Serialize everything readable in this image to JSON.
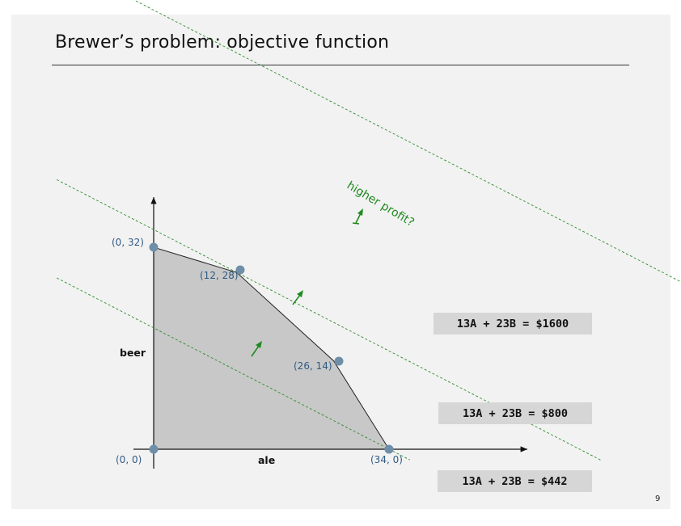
{
  "slide": {
    "title": "Brewer’s problem:  objective function",
    "page_number": "9"
  },
  "axes": {
    "x_label": "ale",
    "y_label": "beer"
  },
  "feasible_region": {
    "vertices": [
      {
        "a": 0,
        "b": 0,
        "label": "(0, 0)"
      },
      {
        "a": 0,
        "b": 32,
        "label": "(0, 32)"
      },
      {
        "a": 12,
        "b": 28,
        "label": "(12, 28)"
      },
      {
        "a": 26,
        "b": 14,
        "label": "(26, 14)"
      },
      {
        "a": 34,
        "b": 0,
        "label": "(34, 0)"
      }
    ]
  },
  "objective_lines": [
    {
      "value": 442,
      "label": "13A + 23B = $442"
    },
    {
      "value": 800,
      "label": "13A + 23B = $800"
    },
    {
      "value": 1600,
      "label": "13A + 23B = $1600"
    }
  ],
  "annotation": {
    "text": "higher profit?"
  },
  "colors": {
    "region_fill": "#c8c8c8",
    "vertex": "#6f8fa8",
    "point_label": "#2f5a84",
    "objective_line": "#2e8b2e",
    "arrow": "#1f8a1f",
    "box": "#d6d6d6"
  }
}
